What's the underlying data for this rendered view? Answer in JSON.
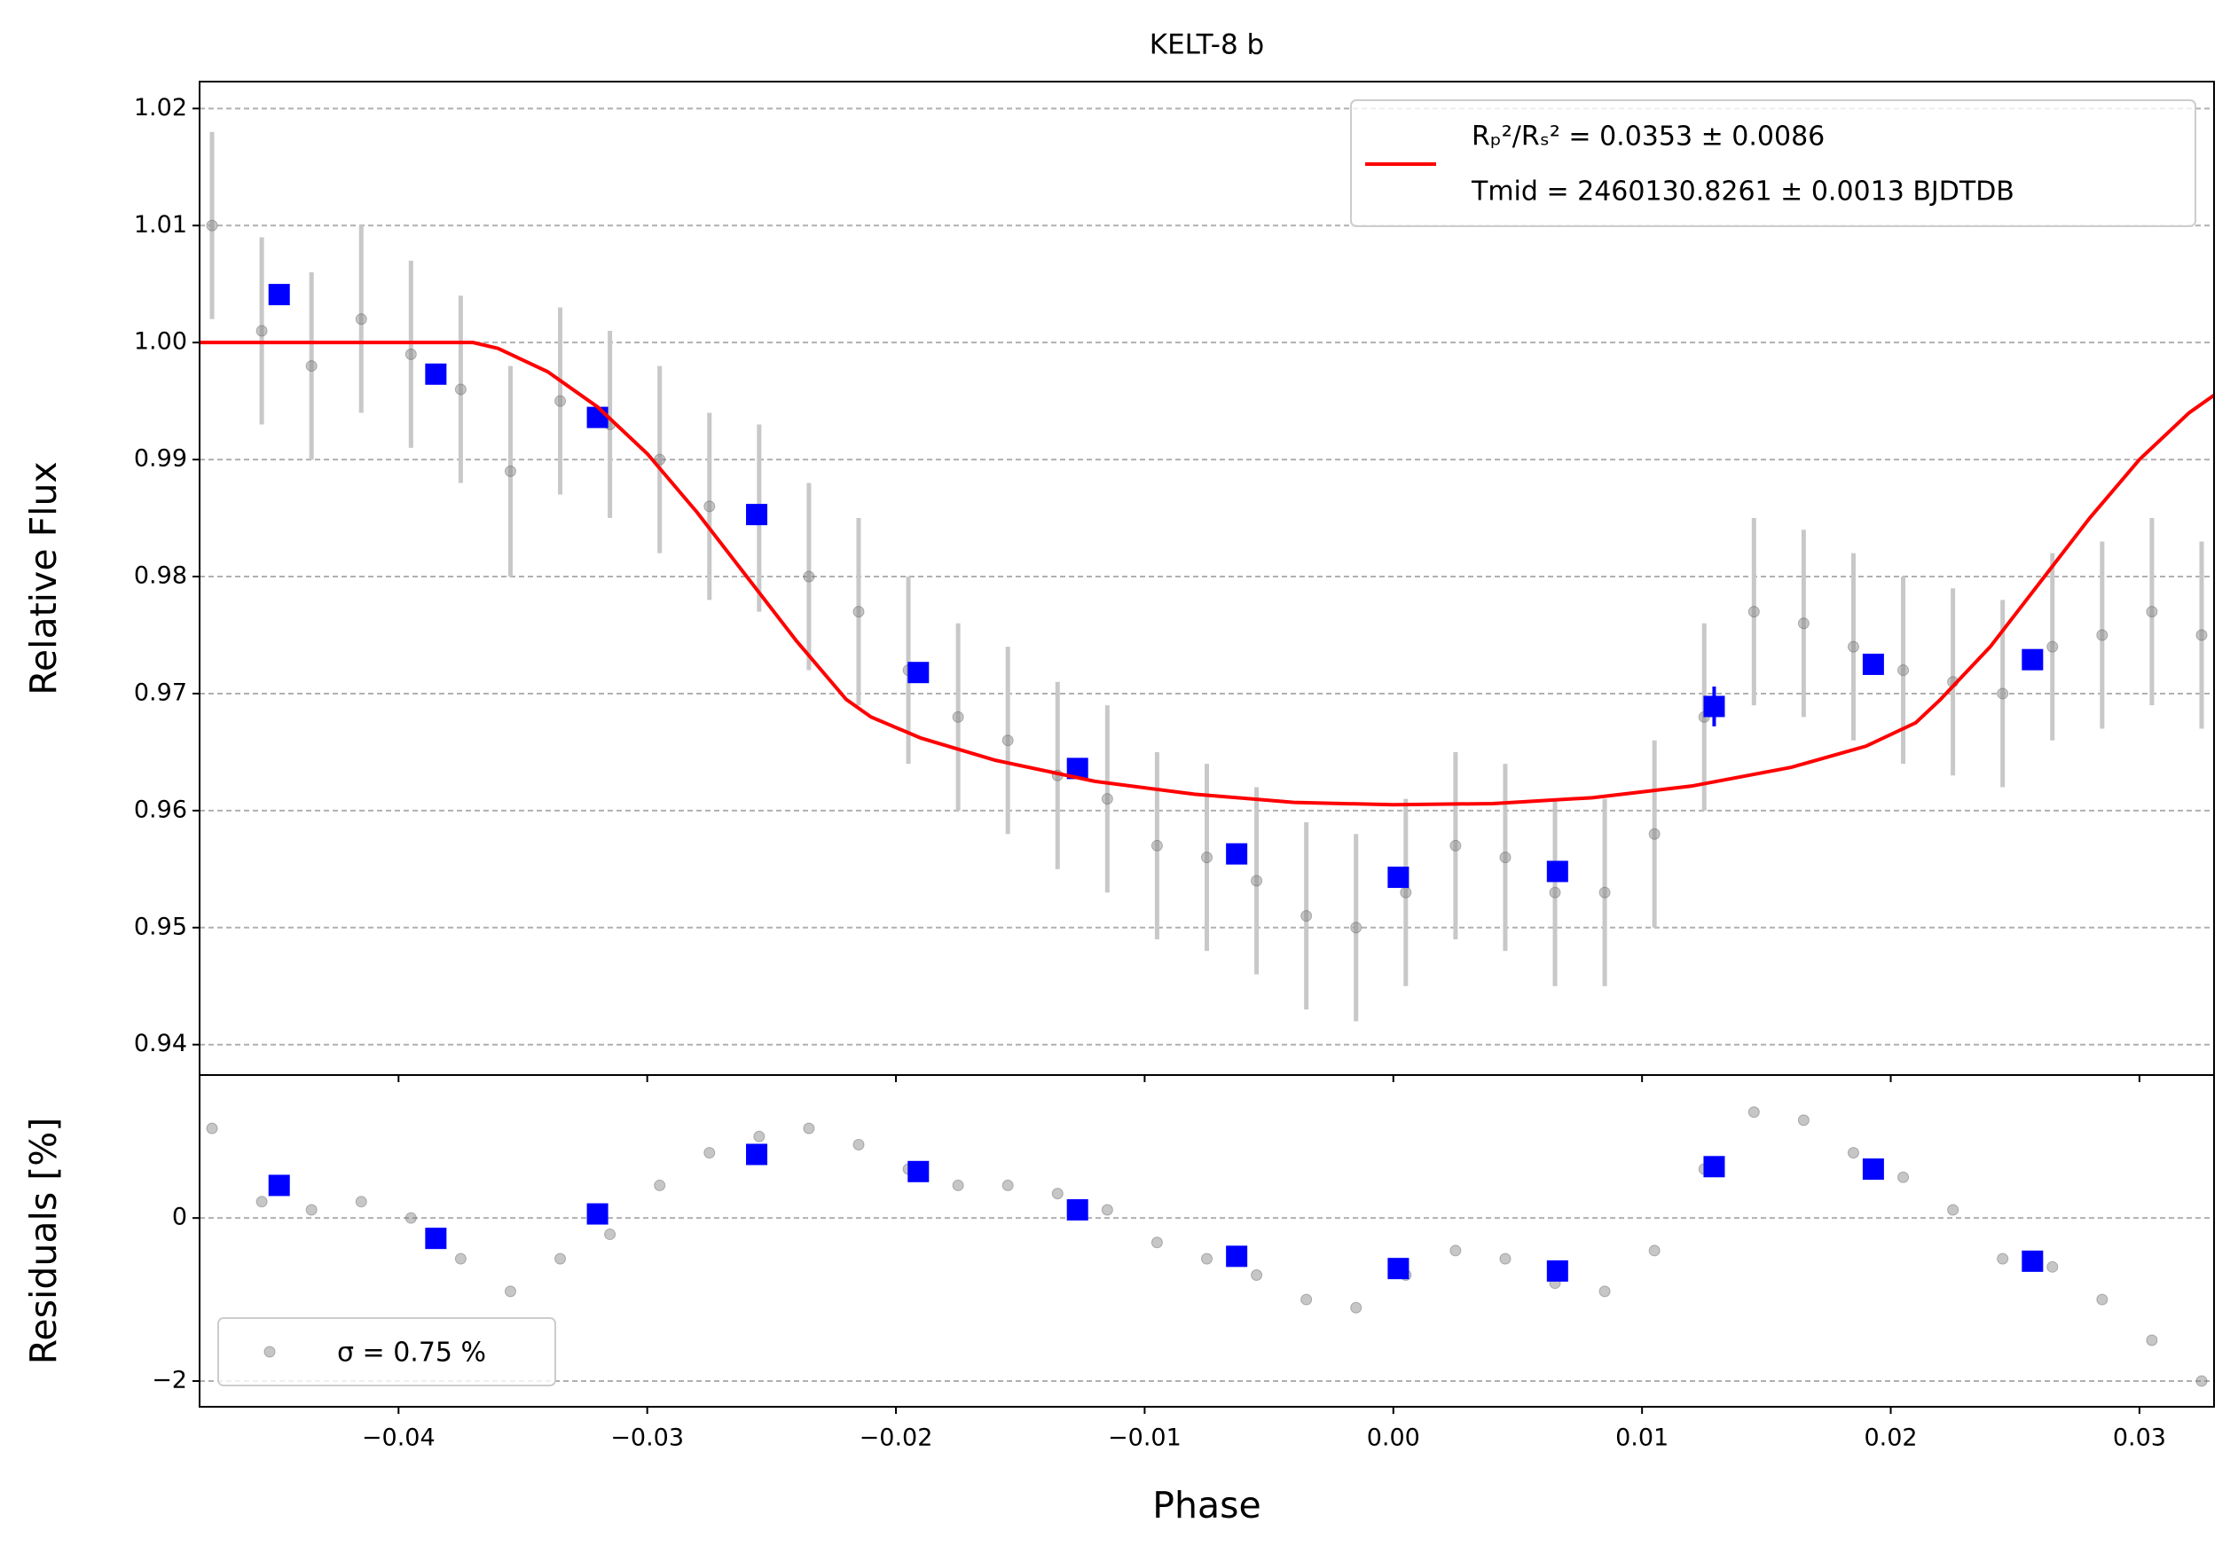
{
  "chart_data": [
    {
      "type": "scatter",
      "title": "KELT-8 b",
      "y_label": "Relative Flux",
      "xlim": [
        -0.048,
        0.033
      ],
      "ylim": [
        0.9374,
        1.0223
      ],
      "xticks": [
        -0.04,
        -0.03,
        -0.02,
        -0.01,
        0,
        0.01,
        0.02,
        0.03
      ],
      "yticks": [
        1.02,
        1.01,
        {
          "value": 1,
          "label": "1.00"
        },
        0.99,
        0.98,
        0.97,
        0.96,
        0.95,
        0.94
      ],
      "grid": true,
      "legend": "upper right",
      "series": [
        {
          "color": "#808080",
          "x": [
            -0.0475,
            -0.0455,
            -0.0435,
            -0.0415,
            -0.0395,
            -0.0375,
            -0.0355,
            -0.0335,
            -0.0315,
            -0.0295,
            -0.0275,
            -0.0255,
            -0.0235,
            -0.0215,
            -0.0195,
            -0.0175,
            -0.0155,
            -0.0135,
            -0.0115,
            -0.0095,
            -0.0075,
            -0.0055,
            -0.0035,
            -0.0015,
            0.0005,
            0.0025,
            0.0045,
            0.0065,
            0.0085,
            0.0105,
            0.0125,
            0.0145,
            0.0165,
            0.0185,
            0.0205,
            0.0225,
            0.0245,
            0.0265,
            0.0285,
            0.0305,
            0.0325
          ],
          "values": [
            1.01,
            1.001,
            0.998,
            1.002,
            0.999,
            0.996,
            0.989,
            0.995,
            0.993,
            0.99,
            0.986,
            0.985,
            0.98,
            0.977,
            0.972,
            0.968,
            0.966,
            0.963,
            0.961,
            0.957,
            0.956,
            0.954,
            0.951,
            0.95,
            0.953,
            0.957,
            0.956,
            0.953,
            0.953,
            0.958,
            0.968,
            0.977,
            0.976,
            0.974,
            0.972,
            0.971,
            0.97,
            0.974,
            0.975,
            0.977,
            0.975
          ],
          "errors": [
            0.008,
            0.008,
            0.008,
            0.008,
            0.008,
            0.008,
            0.009,
            0.008,
            0.008,
            0.008,
            0.008,
            0.008,
            0.008,
            0.008,
            0.008,
            0.008,
            0.008,
            0.008,
            0.008,
            0.008,
            0.008,
            0.008,
            0.008,
            0.008,
            0.008,
            0.008,
            0.008,
            0.008,
            0.008,
            0.008,
            0.008,
            0.008,
            0.008,
            0.008,
            0.008,
            0.008,
            0.008,
            0.008,
            0.008,
            0.008,
            0.008
          ]
        },
        {
          "color": "#0000ff",
          "x": [
            -0.0448,
            -0.0385,
            -0.032,
            -0.0256,
            -0.0191,
            -0.0127,
            -0.0063,
            0.0002,
            0.0066,
            0.0129,
            0.0193,
            0.0257
          ],
          "values": [
            1.0041,
            0.9973,
            0.9936,
            0.9853,
            0.9718,
            0.9636,
            0.9563,
            0.9543,
            0.9548,
            0.9689,
            0.9725,
            0.9729
          ],
          "errors": [
            0.0007,
            0.0007,
            0.0007,
            0.0007,
            0.0007,
            0.0007,
            0.0007,
            0.0007,
            0.0007,
            0.0017,
            0.0007,
            0.0007
          ]
        },
        {
          "name": [
            "Rₚ²/Rₛ² = 0.0353 ± 0.0086",
            "Tmid = 2460130.8261 ± 0.0013 BJDTDB"
          ],
          "color": "#ff0000",
          "style": "line",
          "x": [
            -0.048,
            -0.037,
            -0.036,
            -0.034,
            -0.032,
            -0.03,
            -0.028,
            -0.026,
            -0.024,
            -0.022,
            -0.021,
            -0.019,
            -0.016,
            -0.012,
            -0.008,
            -0.004,
            0,
            0.004,
            0.008,
            0.012,
            0.016,
            0.019,
            0.021,
            0.022,
            0.024,
            0.026,
            0.028,
            0.03,
            0.032,
            0.033
          ],
          "values": [
            1.0,
            1.0,
            0.9995,
            0.9975,
            0.9945,
            0.9905,
            0.9855,
            0.98,
            0.9745,
            0.9695,
            0.968,
            0.9662,
            0.9643,
            0.9625,
            0.9614,
            0.9607,
            0.9605,
            0.9606,
            0.9611,
            0.9621,
            0.9637,
            0.9655,
            0.9675,
            0.9695,
            0.974,
            0.9795,
            0.985,
            0.99,
            0.994,
            0.9955
          ]
        }
      ]
    },
    {
      "type": "scatter",
      "y_label": "Residuals [%]",
      "x_label": "Phase",
      "xlim": [
        -0.048,
        0.033
      ],
      "ylim": [
        -2.316,
        1.754
      ],
      "xticks": [
        {
          "value": -0.04,
          "label": "−0.04"
        },
        {
          "value": -0.03,
          "label": "−0.03"
        },
        {
          "value": -0.02,
          "label": "−0.02"
        },
        {
          "value": -0.01,
          "label": "−0.01"
        },
        {
          "value": 0,
          "label": "0.00"
        },
        0.01,
        0.02,
        0.03
      ],
      "yticks": [
        0,
        {
          "value": -2,
          "label": "−2"
        }
      ],
      "grid": true,
      "legend": "lower left",
      "series": [
        {
          "name": "σ = 0.75 %",
          "color": "#808080",
          "x": [
            -0.0475,
            -0.0455,
            -0.0435,
            -0.0415,
            -0.0395,
            -0.0375,
            -0.0355,
            -0.0335,
            -0.0315,
            -0.0295,
            -0.0275,
            -0.0255,
            -0.0235,
            -0.0215,
            -0.0195,
            -0.0175,
            -0.0155,
            -0.0135,
            -0.0115,
            -0.0095,
            -0.0075,
            -0.0055,
            -0.0035,
            -0.0015,
            0.0005,
            0.0025,
            0.0045,
            0.0065,
            0.0085,
            0.0105,
            0.0125,
            0.0145,
            0.0165,
            0.0185,
            0.0205,
            0.0225,
            0.0245,
            0.0265,
            0.0285,
            0.0305,
            0.0325
          ],
          "values": [
            1.1,
            0.2,
            0.1,
            0.2,
            0.0,
            -0.5,
            -0.9,
            -0.5,
            -0.2,
            0.4,
            0.8,
            1.0,
            1.1,
            0.9,
            0.6,
            0.4,
            0.4,
            0.3,
            0.1,
            -0.3,
            -0.5,
            -0.7,
            -1.0,
            -1.1,
            -0.7,
            -0.4,
            -0.5,
            -0.8,
            -0.9,
            -0.4,
            0.6,
            1.3,
            1.2,
            0.8,
            0.5,
            0.1,
            -0.5,
            -0.6,
            -1.0,
            -1.5,
            -2.0
          ]
        },
        {
          "color": "#0000ff",
          "x": [
            -0.0448,
            -0.0385,
            -0.032,
            -0.0256,
            -0.0191,
            -0.0127,
            -0.0063,
            0.0002,
            0.0066,
            0.0129,
            0.0193,
            0.0257
          ],
          "values": [
            0.4,
            -0.25,
            0.05,
            0.78,
            0.57,
            0.1,
            -0.47,
            -0.62,
            -0.65,
            0.63,
            0.6,
            -0.53
          ]
        }
      ]
    }
  ]
}
